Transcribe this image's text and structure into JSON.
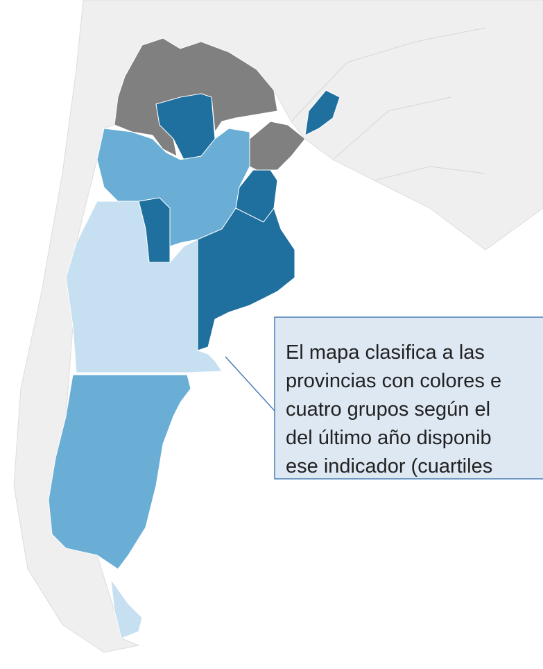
{
  "callout": {
    "lines": [
      "El mapa clasifica a las",
      "provincias con colores e",
      "cuatro grupos según el",
      "del último año disponib",
      "ese indicador (cuartiles"
    ]
  }
}
